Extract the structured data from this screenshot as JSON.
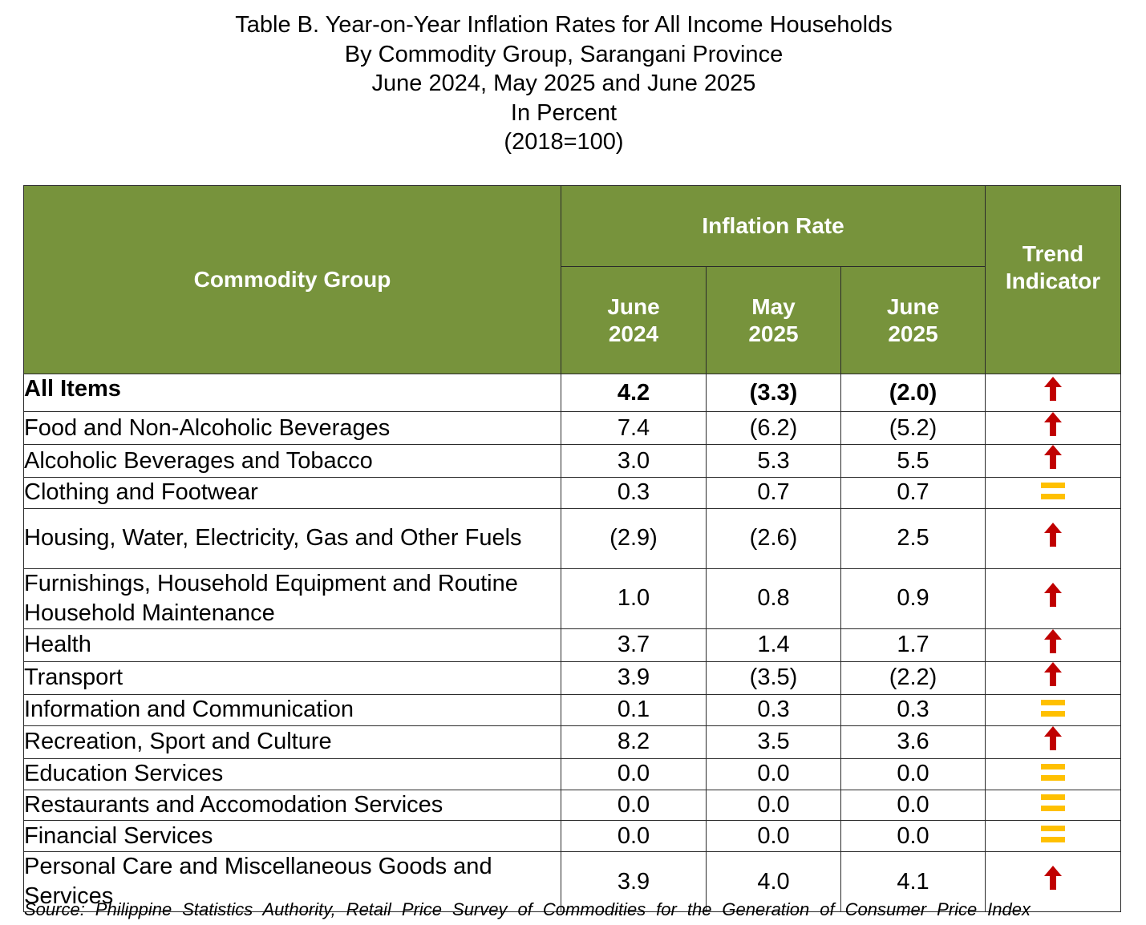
{
  "title": {
    "line1": "Table B. Year-on-Year Inflation Rates for All Income Households",
    "line2": "By Commodity Group, Sarangani Province",
    "line3": "June 2024, May 2025 and June 2025",
    "line4": "In Percent",
    "line5": "(2018=100)"
  },
  "header": {
    "commodity_group": "Commodity Group",
    "inflation_rate": "Inflation Rate",
    "trend_indicator_1": "Trend",
    "trend_indicator_2": "Indicator",
    "periods": [
      {
        "line1": "June",
        "line2": "2024"
      },
      {
        "line1": "May",
        "line2": "2025"
      },
      {
        "line1": "June",
        "line2": "2025"
      }
    ]
  },
  "rows": [
    {
      "name": "All Items",
      "jun2024": "4.2",
      "may2025": "(3.3)",
      "jun2025": "(2.0)",
      "trend": "up"
    },
    {
      "name": "Food and Non-Alcoholic Beverages",
      "jun2024": "7.4",
      "may2025": "(6.2)",
      "jun2025": "(5.2)",
      "trend": "up"
    },
    {
      "name": "Alcoholic Beverages and Tobacco",
      "jun2024": "3.0",
      "may2025": "5.3",
      "jun2025": "5.5",
      "trend": "up"
    },
    {
      "name": "Clothing and Footwear",
      "jun2024": "0.3",
      "may2025": "0.7",
      "jun2025": "0.7",
      "trend": "equal"
    },
    {
      "name": "Housing, Water, Electricity, Gas and Other Fuels",
      "jun2024": "(2.9)",
      "may2025": "(2.6)",
      "jun2025": "2.5",
      "trend": "up"
    },
    {
      "name": "Furnishings, Household Equipment and Routine Household Maintenance",
      "jun2024": "1.0",
      "may2025": "0.8",
      "jun2025": "0.9",
      "trend": "up"
    },
    {
      "name": "Health",
      "jun2024": "3.7",
      "may2025": "1.4",
      "jun2025": "1.7",
      "trend": "up"
    },
    {
      "name": "Transport",
      "jun2024": "3.9",
      "may2025": "(3.5)",
      "jun2025": "(2.2)",
      "trend": "up"
    },
    {
      "name": "Information and Communication",
      "jun2024": "0.1",
      "may2025": "0.3",
      "jun2025": "0.3",
      "trend": "equal"
    },
    {
      "name": "Recreation, Sport and Culture",
      "jun2024": "8.2",
      "may2025": "3.5",
      "jun2025": "3.6",
      "trend": "up"
    },
    {
      "name": "Education Services",
      "jun2024": "0.0",
      "may2025": "0.0",
      "jun2025": "0.0",
      "trend": "equal"
    },
    {
      "name": "Restaurants and Accomodation Services",
      "jun2024": "0.0",
      "may2025": "0.0",
      "jun2025": "0.0",
      "trend": "equal"
    },
    {
      "name": "Financial Services",
      "jun2024": "0.0",
      "may2025": "0.0",
      "jun2025": "0.0",
      "trend": "equal"
    },
    {
      "name": "Personal Care and Miscellaneous Goods and Services",
      "jun2024": "3.9",
      "may2025": "4.0",
      "jun2025": "4.1",
      "trend": "up"
    }
  ],
  "icons": {
    "up": "up-arrow-icon",
    "equal": "equal-sign-icon"
  },
  "colors": {
    "header_bg": "#77933c",
    "up_arrow": "#c00000",
    "equal_sign": "#ffc000"
  },
  "source": "Source:  Philippine  Statistics  Authority,  Retail  Price  Survey  of  Commodities  for  the  Generation  of Consumer Price Index"
}
